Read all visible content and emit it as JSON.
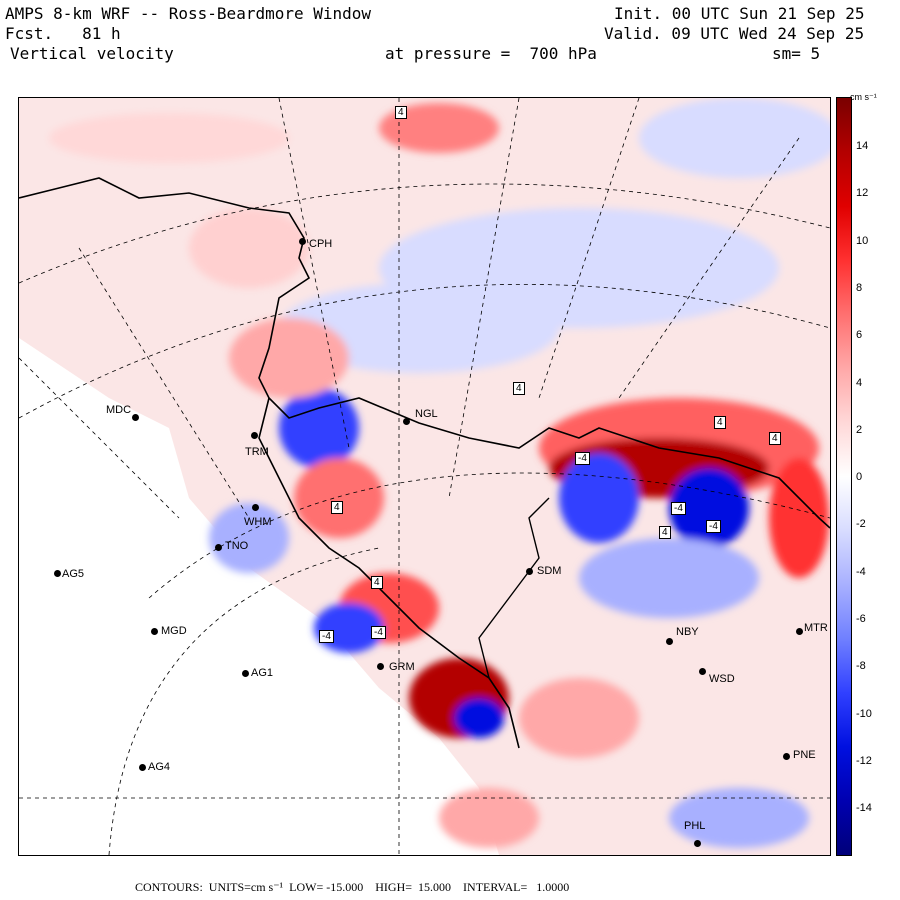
{
  "header": {
    "model": "AMPS 8-km WRF -- Ross-Beardmore Window",
    "fcst_label": "Fcst.",
    "fcst_hours": "81 h",
    "field": "Vertical velocity",
    "level": "at pressure =  700 hPa",
    "init": "Init. 00 UTC Sun 21 Sep 25",
    "valid": "Valid. 09 UTC Wed 24 Sep 25",
    "smooth": "sm= 5"
  },
  "colorbar": {
    "units": "cm s⁻¹",
    "ticks": [
      "14",
      "12",
      "10",
      "8",
      "6",
      "4",
      "2",
      "0",
      "-2",
      "-4",
      "-6",
      "-8",
      "-10",
      "-12",
      "-14"
    ],
    "colors": [
      "#7a0000",
      "#b30000",
      "#e00000",
      "#ff3030",
      "#ff7070",
      "#ffa8a8",
      "#ffd8d8",
      "#ffffff",
      "#d8dcff",
      "#a8b0ff",
      "#7080ff",
      "#3040ff",
      "#0010e0",
      "#0000b0",
      "#00007a"
    ]
  },
  "stations": [
    {
      "id": "CPH",
      "label": "CPH"
    },
    {
      "id": "NGL",
      "label": "NGL"
    },
    {
      "id": "MDC",
      "label": "MDC"
    },
    {
      "id": "TRM",
      "label": "TRM"
    },
    {
      "id": "WHM",
      "label": "WHM"
    },
    {
      "id": "TNO",
      "label": "TNO"
    },
    {
      "id": "AG5",
      "label": "AG5"
    },
    {
      "id": "MGD",
      "label": "MGD"
    },
    {
      "id": "AG1",
      "label": "AG1"
    },
    {
      "id": "AG4",
      "label": "AG4"
    },
    {
      "id": "SDM",
      "label": "SDM"
    },
    {
      "id": "GRM",
      "label": "GRM"
    },
    {
      "id": "NBY",
      "label": "NBY"
    },
    {
      "id": "WSD",
      "label": "WSD"
    },
    {
      "id": "PNE",
      "label": "PNE"
    },
    {
      "id": "PHL",
      "label": "PHL"
    },
    {
      "id": "MTR",
      "label": "MTR"
    }
  ],
  "contour_labels": [
    "4",
    "4",
    "-4",
    "-4",
    "4",
    "4",
    "-4",
    "4",
    "-4",
    "4",
    "-4",
    "4"
  ],
  "footer": {
    "contours": "CONTOURS:",
    "units": "UNITS=cm s⁻¹",
    "low": "LOW= -15.000",
    "high": "HIGH=  15.000",
    "interval": "INTERVAL=   1.0000"
  }
}
